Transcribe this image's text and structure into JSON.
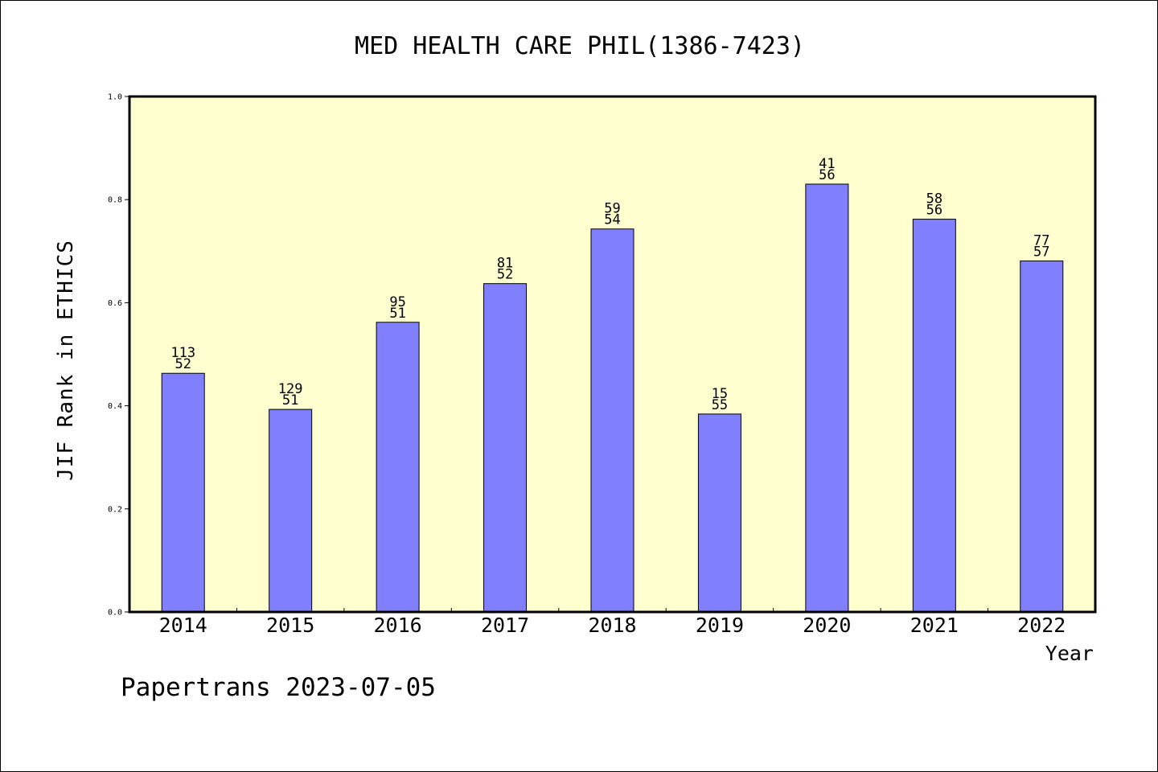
{
  "chart_data": {
    "type": "bar",
    "title": "MED HEALTH CARE PHIL(1386-7423)",
    "ylabel": "JIF Rank in ETHICS",
    "xlabel": "Year",
    "ylim": [
      0.0,
      1.0
    ],
    "yticks": [
      "0.0",
      "0.2",
      "0.4",
      "0.6",
      "0.8",
      "1.0"
    ],
    "categories": [
      "2014",
      "2015",
      "2016",
      "2017",
      "2018",
      "2019",
      "2020",
      "2021",
      "2022"
    ],
    "values": [
      0.463,
      0.393,
      0.562,
      0.637,
      0.743,
      0.384,
      0.83,
      0.762,
      0.681
    ],
    "labels": [
      [
        "113",
        "52"
      ],
      [
        "129",
        "51"
      ],
      [
        "95",
        "51"
      ],
      [
        "81",
        "52"
      ],
      [
        "59",
        "54"
      ],
      [
        "15",
        "55"
      ],
      [
        "41",
        "56"
      ],
      [
        "58",
        "56"
      ],
      [
        "77",
        "57"
      ]
    ],
    "grid": false,
    "colors": {
      "plot_background": "#ffffd0",
      "bar_fill": "#8080ff",
      "bar_stroke": "#000000"
    }
  },
  "footer": "Papertrans 2023-07-05"
}
